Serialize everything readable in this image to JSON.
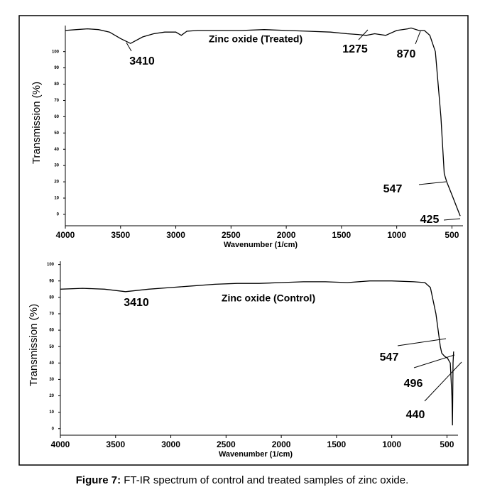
{
  "caption": {
    "label": "Figure 7:",
    "text": "FT-IR spectrum of control and treated samples of zinc oxide."
  },
  "chart_data": [
    {
      "type": "line",
      "title": "Zinc oxide (Treated)",
      "xlabel": "Wavenumber (1/cm)",
      "ylabel": "Transmission (%)",
      "color": "#000000",
      "x": [
        4000,
        3900,
        3800,
        3700,
        3600,
        3500,
        3410,
        3300,
        3200,
        3100,
        3000,
        2950,
        2900,
        2800,
        2600,
        2400,
        2200,
        2000,
        1800,
        1600,
        1450,
        1350,
        1275,
        1200,
        1100,
        1000,
        900,
        870,
        800,
        750,
        700,
        650,
        600,
        570,
        547,
        500,
        460,
        425
      ],
      "values": [
        113,
        113.5,
        114,
        113.5,
        112,
        108,
        105,
        109,
        111,
        112,
        112,
        110,
        112.5,
        113,
        113,
        113,
        113.5,
        113,
        112.5,
        112,
        111,
        110.5,
        110,
        111,
        110,
        113,
        114,
        114.5,
        113,
        113,
        110,
        100,
        60,
        25,
        20,
        12,
        5,
        -1
      ],
      "xlim": [
        4000,
        400
      ],
      "xticks": [
        4000,
        3500,
        3000,
        2500,
        2000,
        1500,
        1000,
        500
      ],
      "ylim": [
        -7,
        116
      ],
      "yticks": [
        0,
        10,
        20,
        30,
        40,
        50,
        60,
        70,
        80,
        90,
        100
      ],
      "annotations": [
        "3410",
        "1275",
        "870",
        "547",
        "425"
      ]
    },
    {
      "type": "line",
      "title": "Zinc oxide (Control)",
      "xlabel": "Wavenumber (1/cm)",
      "ylabel": "Transmission (%)",
      "color": "#000000",
      "x": [
        4000,
        3800,
        3600,
        3410,
        3200,
        3000,
        2800,
        2600,
        2400,
        2200,
        2000,
        1800,
        1600,
        1400,
        1200,
        1000,
        800,
        700,
        650,
        600,
        580,
        560,
        547,
        520,
        496,
        470,
        455,
        450,
        445,
        440
      ],
      "values": [
        85,
        85.5,
        85,
        83.5,
        85,
        86,
        87,
        88,
        88.5,
        88.5,
        89,
        89.5,
        89.5,
        89,
        90,
        90,
        89.5,
        89,
        86,
        70,
        60,
        50,
        46,
        44,
        43,
        40,
        20,
        2,
        40,
        47
      ],
      "xlim": [
        4000,
        400
      ],
      "xticks": [
        4000,
        3500,
        3000,
        2500,
        2000,
        1500,
        1000,
        500
      ],
      "ylim": [
        -4,
        102
      ],
      "yticks": [
        0,
        10,
        20,
        30,
        40,
        50,
        60,
        70,
        80,
        90,
        100
      ],
      "annotations": [
        "3410",
        "547",
        "496",
        "440"
      ]
    }
  ]
}
